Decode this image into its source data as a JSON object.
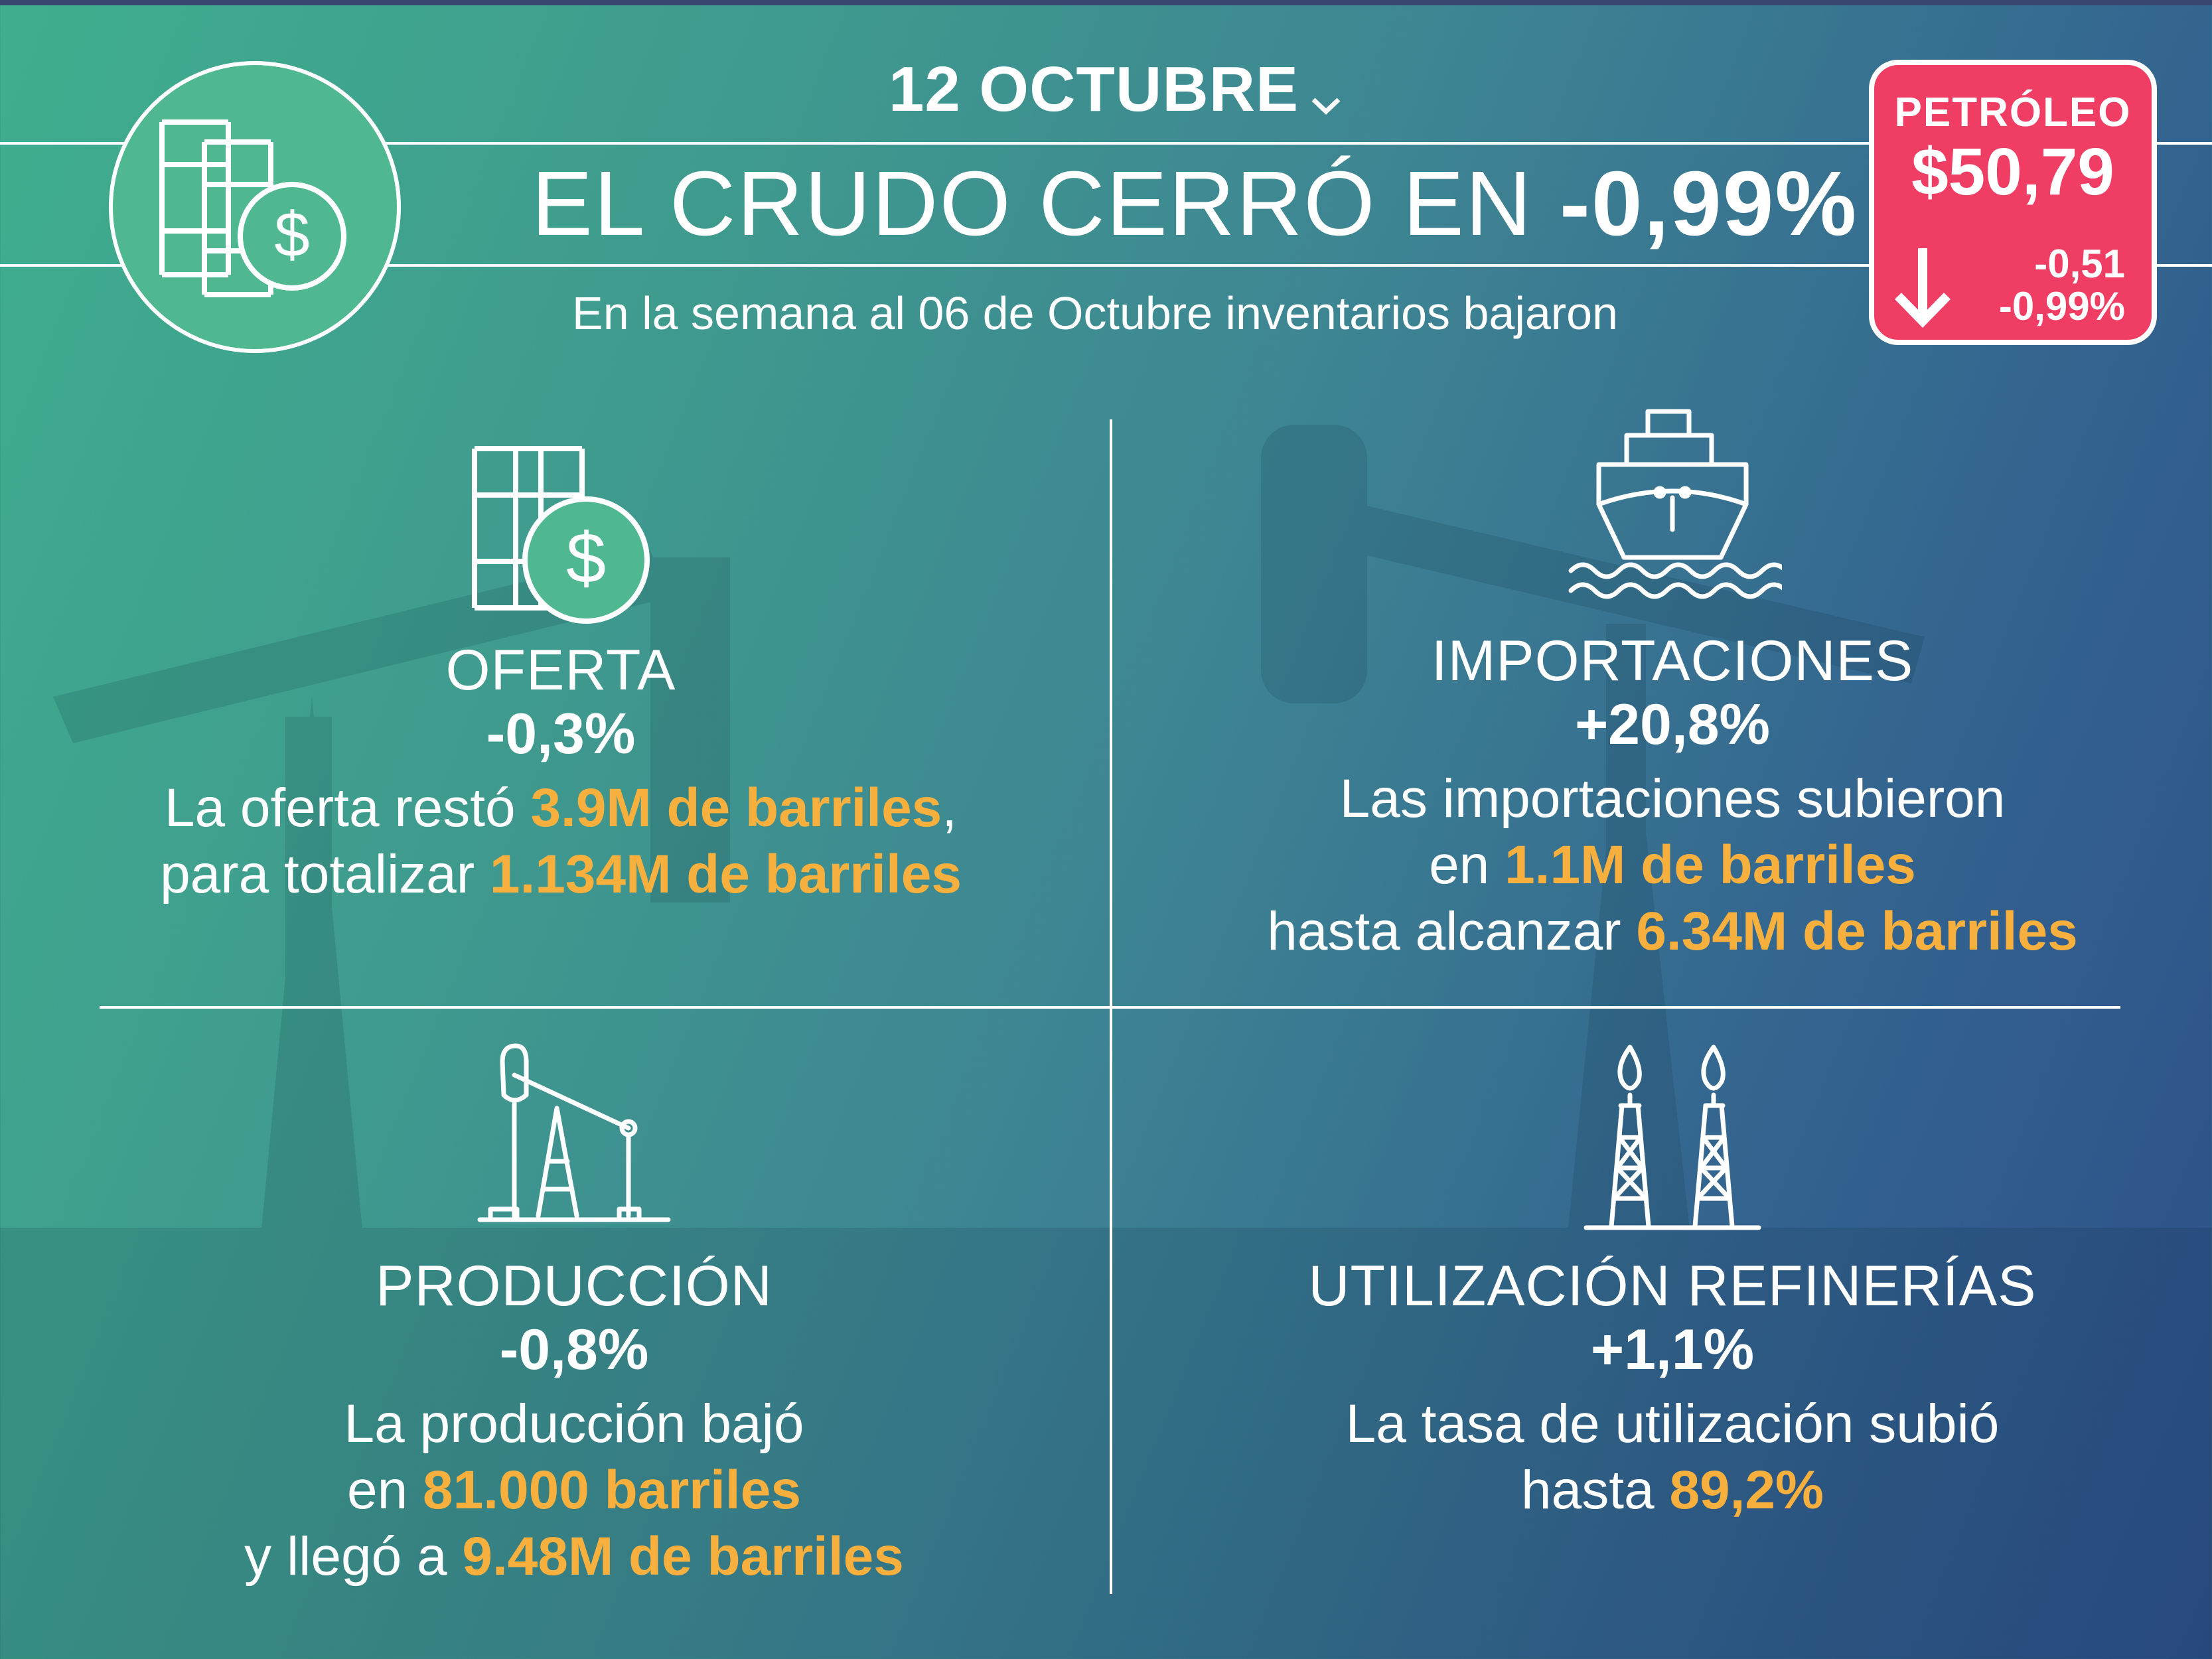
{
  "header": {
    "date": "12 OCTUBRE",
    "headline_prefix": "EL CRUDO CERRÓ EN ",
    "headline_value": "-0,99%",
    "subtitle": "En la semana al 06 de Octubre inventarios bajaron"
  },
  "price_box": {
    "label": "PETRÓLEO",
    "value": "$50,79",
    "change_abs": "-0,51",
    "change_pct": "-0,99%",
    "direction": "down",
    "color": "#ef3d63"
  },
  "highlight_color": "#f7b03d",
  "quadrants": {
    "oferta": {
      "icon": "barrels-dollar-icon",
      "title": "OFERTA",
      "pct": "-0,3%",
      "l1a": "La oferta restó ",
      "l1b": "3.9M de barriles",
      "l1c": ",",
      "l2a": "para totalizar ",
      "l2b": "1.134M de barriles"
    },
    "importaciones": {
      "icon": "ship-icon",
      "title": "IMPORTACIONES",
      "pct": "+20,8%",
      "l1": "Las importaciones subieron",
      "l2a": "en ",
      "l2b": "1.1M de barriles",
      "l3a": "hasta alcanzar ",
      "l3b": "6.34M de barriles"
    },
    "produccion": {
      "icon": "pumpjack-icon",
      "title": "PRODUCCIÓN",
      "pct": "-0,8%",
      "l1": "La producción bajó",
      "l2a": "en ",
      "l2b": "81.000 barriles",
      "l3a": "y llegó a ",
      "l3b": "9.48M de barriles"
    },
    "refinerias": {
      "icon": "refinery-towers-icon",
      "title": "UTILIZACIÓN REFINERÍAS",
      "pct": "+1,1%",
      "l1": "La tasa de utilización subió",
      "l2a": "hasta ",
      "l2b": "89,2%"
    }
  }
}
